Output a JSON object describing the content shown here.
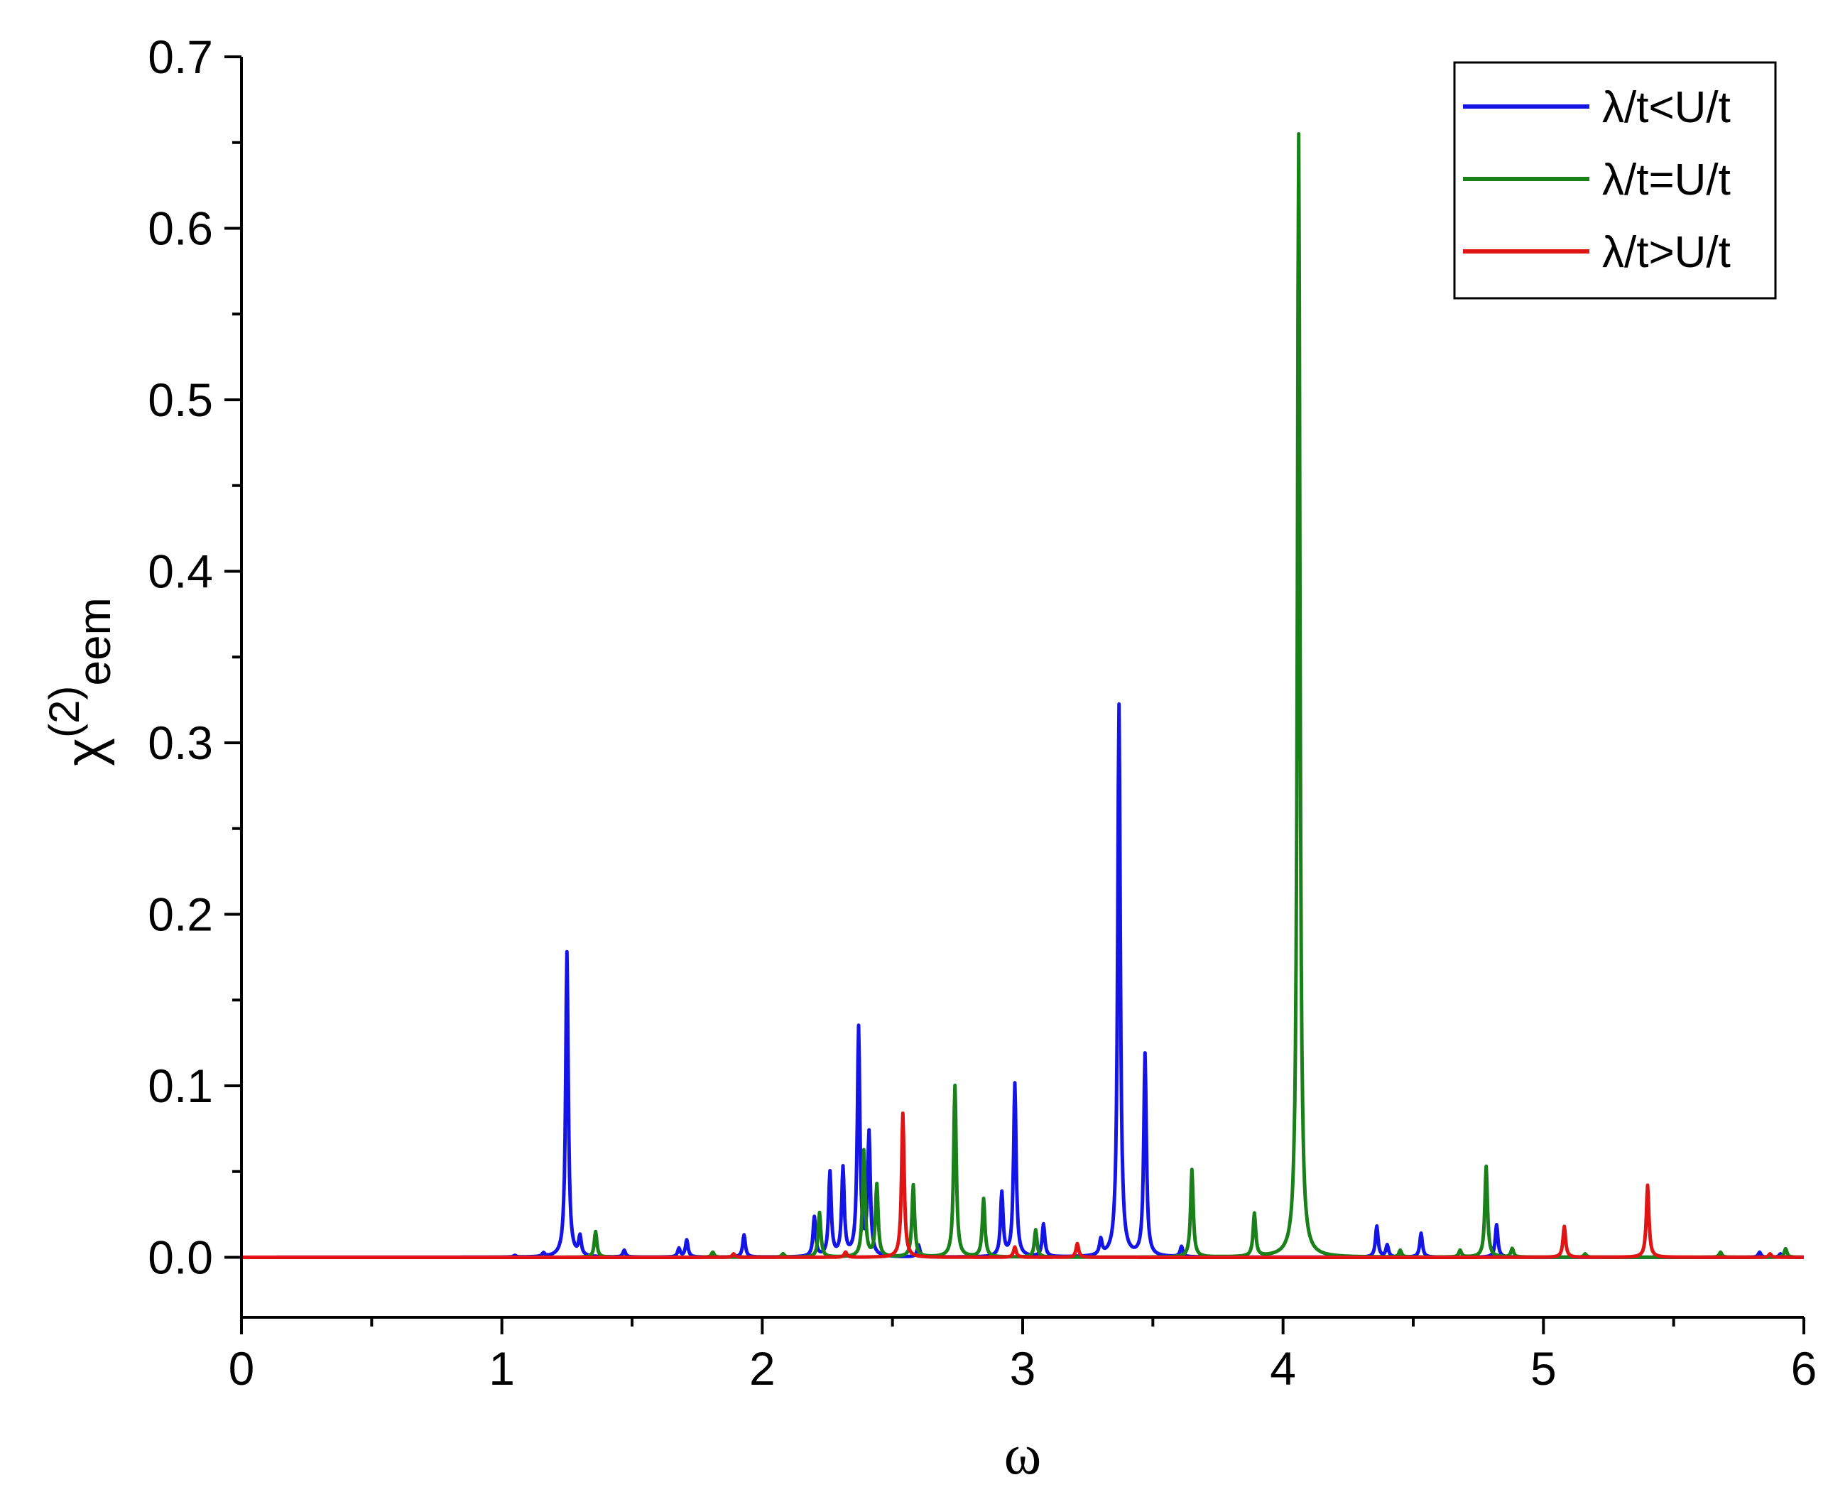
{
  "chart_data": {
    "type": "line",
    "title": "",
    "xlabel": "ω",
    "ylabel": {
      "base": "χ",
      "superscript": "(2)",
      "subscript": "eem"
    },
    "xlim": [
      0,
      6
    ],
    "ylim": [
      -0.035,
      0.7
    ],
    "x_ticks": [
      "0",
      "1",
      "2",
      "3",
      "4",
      "5",
      "6"
    ],
    "y_ticks": [
      "0.0",
      "0.1",
      "0.2",
      "0.3",
      "0.4",
      "0.5",
      "0.6",
      "0.7"
    ],
    "grid": false,
    "legend_position": "top-right",
    "colors": {
      "blue": "#1414e6",
      "green": "#1a801a",
      "red": "#e01414"
    },
    "series": [
      {
        "name": "λ/t<U/t",
        "color": "#1414e6",
        "peaks": [
          [
            1.05,
            0.001
          ],
          [
            1.16,
            0.002
          ],
          [
            1.25,
            0.178
          ],
          [
            1.3,
            0.011
          ],
          [
            1.47,
            0.004
          ],
          [
            1.68,
            0.005
          ],
          [
            1.71,
            0.01
          ],
          [
            1.93,
            0.013
          ],
          [
            2.2,
            0.023
          ],
          [
            2.26,
            0.049
          ],
          [
            2.31,
            0.051
          ],
          [
            2.37,
            0.133
          ],
          [
            2.41,
            0.071
          ],
          [
            2.6,
            0.007
          ],
          [
            2.92,
            0.037
          ],
          [
            2.97,
            0.101
          ],
          [
            3.08,
            0.019
          ],
          [
            3.3,
            0.009
          ],
          [
            3.37,
            0.322
          ],
          [
            3.47,
            0.118
          ],
          [
            3.61,
            0.006
          ],
          [
            4.36,
            0.018
          ],
          [
            4.4,
            0.007
          ],
          [
            4.53,
            0.014
          ],
          [
            4.82,
            0.019
          ],
          [
            5.83,
            0.003
          ],
          [
            5.91,
            0.002
          ]
        ]
      },
      {
        "name": "λ/t=U/t",
        "color": "#1a801a",
        "peaks": [
          [
            1.36,
            0.015
          ],
          [
            1.81,
            0.003
          ],
          [
            2.08,
            0.002
          ],
          [
            2.22,
            0.026
          ],
          [
            2.39,
            0.062
          ],
          [
            2.44,
            0.042
          ],
          [
            2.58,
            0.042
          ],
          [
            2.74,
            0.1
          ],
          [
            2.85,
            0.034
          ],
          [
            3.05,
            0.016
          ],
          [
            3.65,
            0.051
          ],
          [
            3.89,
            0.025
          ],
          [
            4.06,
            0.655
          ],
          [
            4.45,
            0.004
          ],
          [
            4.68,
            0.004
          ],
          [
            4.78,
            0.053
          ],
          [
            4.88,
            0.005
          ],
          [
            5.16,
            0.002
          ],
          [
            5.68,
            0.003
          ],
          [
            5.93,
            0.005
          ]
        ]
      },
      {
        "name": "λ/t>U/t",
        "color": "#e01414",
        "peaks": [
          [
            1.89,
            0.002
          ],
          [
            2.32,
            0.003
          ],
          [
            2.54,
            0.084
          ],
          [
            2.97,
            0.006
          ],
          [
            3.21,
            0.008
          ],
          [
            5.08,
            0.018
          ],
          [
            5.4,
            0.042
          ],
          [
            5.87,
            0.002
          ]
        ]
      }
    ]
  }
}
